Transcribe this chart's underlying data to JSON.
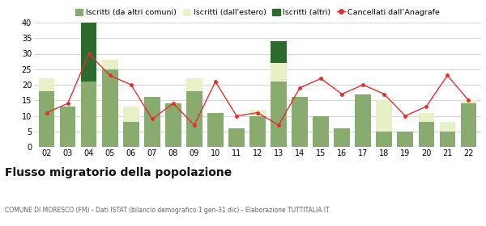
{
  "years": [
    "02",
    "03",
    "04",
    "05",
    "06",
    "07",
    "08",
    "09",
    "10",
    "11",
    "12",
    "13",
    "14",
    "15",
    "16",
    "17",
    "18",
    "19",
    "20",
    "21",
    "22"
  ],
  "iscritti_altri_comuni": [
    18,
    13,
    21,
    25,
    8,
    16,
    14,
    18,
    11,
    6,
    10,
    21,
    16,
    10,
    6,
    17,
    5,
    5,
    8,
    5,
    14
  ],
  "iscritti_estero": [
    4,
    0,
    0,
    3,
    5,
    0,
    0,
    4,
    0,
    0,
    2,
    6,
    0,
    0,
    0,
    0,
    10,
    0,
    3,
    3,
    1
  ],
  "iscritti_altri": [
    0,
    0,
    19,
    0,
    0,
    0,
    0,
    0,
    0,
    0,
    0,
    7,
    0,
    0,
    0,
    0,
    0,
    0,
    0,
    0,
    0
  ],
  "cancellati": [
    11,
    14,
    30,
    23,
    20,
    9,
    14,
    7,
    21,
    10,
    11,
    7,
    19,
    22,
    17,
    20,
    17,
    10,
    13,
    23,
    15
  ],
  "color_altri_comuni": "#8aab6f",
  "color_estero": "#e8f0c8",
  "color_altri": "#2d6a2d",
  "color_cancellati": "#e03030",
  "color_grid": "#cccccc",
  "color_background": "#ffffff",
  "title": "Flusso migratorio della popolazione",
  "subtitle": "COMUNE DI MORESCO (FM) - Dati ISTAT (bilancio demografico 1 gen-31 dic) - Elaborazione TUTTITALIA.IT",
  "legend_labels": [
    "Iscritti (da altri comuni)",
    "Iscritti (dall'estero)",
    "Iscritti (altri)",
    "Cancellati dall’Anagrafe"
  ],
  "ylim": [
    0,
    40
  ],
  "yticks": [
    0,
    5,
    10,
    15,
    20,
    25,
    30,
    35,
    40
  ],
  "figsize": [
    6.0,
    2.8
  ],
  "dpi": 100
}
